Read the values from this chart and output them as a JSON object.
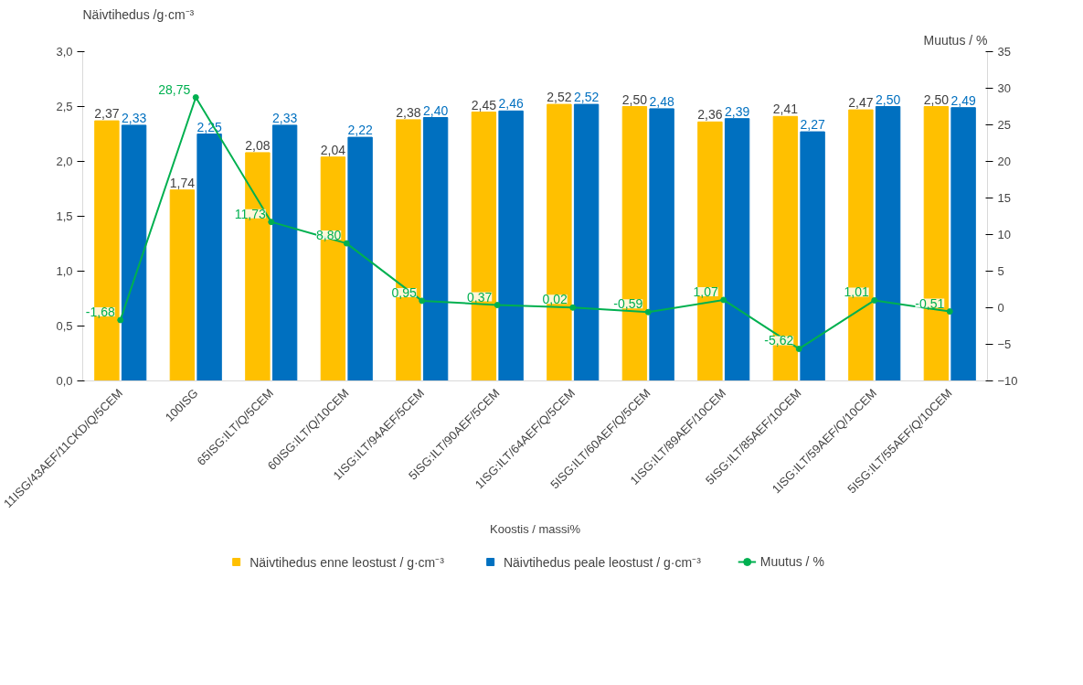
{
  "chart_data": {
    "type": "bar",
    "ylabel": "Näivtihedus /g·cm⁻³",
    "y2label": "Muutus / %",
    "xlabel": "Koostis / massi%",
    "categories": [
      "11ISG/43AEF/11CKD/Q/5CEM",
      "100ISG",
      "65ISG:ILT/Q/5CEM",
      "60ISG:ILT/Q/10CEM",
      "1ISG:ILT/94AEF/5CEM",
      "5ISG:ILT/90AEF/5CEM",
      "1ISG:ILT/64AEF/Q/5CEM",
      "5ISG:ILT/60AEF/Q/5CEM",
      "1ISG:ILT/89AEF/10CEM",
      "5ISG:ILT/85AEF/10CEM",
      "1ISG:ILT/59AEF/Q/10CEM",
      "5ISG:ILT/55AEF/Q/10CEM"
    ],
    "series": [
      {
        "name": "Näivtihedus enne leostust / g·cm⁻³",
        "color": "#ffc000",
        "values": [
          2.37,
          1.74,
          2.08,
          2.04,
          2.38,
          2.45,
          2.52,
          2.5,
          2.36,
          2.41,
          2.47,
          2.5
        ],
        "value_labels": [
          "2,37",
          "1,74",
          "2,08",
          "2,04",
          "2,38",
          "2,45",
          "2,52",
          "2,50",
          "2,36",
          "2,41",
          "2,47",
          "2,50"
        ]
      },
      {
        "name": "Näivtihedus peale leostust / g·cm⁻³",
        "color": "#0070c0",
        "values": [
          2.33,
          2.25,
          2.33,
          2.22,
          2.4,
          2.46,
          2.52,
          2.48,
          2.39,
          2.27,
          2.5,
          2.49
        ],
        "value_labels": [
          "2,33",
          "2,25",
          "2,33",
          "2,22",
          "2,40",
          "2,46",
          "2,52",
          "2,48",
          "2,39",
          "2,27",
          "2,50",
          "2,49"
        ]
      },
      {
        "name": "Muutus / %",
        "type": "line",
        "axis": "y2",
        "color": "#00b050",
        "marker": "circle",
        "values": [
          -1.68,
          28.75,
          11.73,
          8.8,
          0.95,
          0.37,
          0.02,
          -0.59,
          1.07,
          -5.62,
          1.01,
          -0.51
        ],
        "value_labels": [
          "-1,68",
          "28,75",
          "11,73",
          "8,80",
          "0,95",
          "0,37",
          "0,02",
          "-0,59",
          "1,07",
          "-5,62",
          "1,01",
          "-0,51"
        ]
      }
    ],
    "ylim": [
      0,
      3
    ],
    "yticks": [
      {
        "value": 0,
        "label": "0,0"
      },
      {
        "value": 0.5,
        "label": "0,5"
      },
      {
        "value": 1,
        "label": "1,0"
      },
      {
        "value": 1.5,
        "label": "1,5"
      },
      {
        "value": 2,
        "label": "2,0"
      },
      {
        "value": 2.5,
        "label": "2,5"
      },
      {
        "value": 3,
        "label": "3,0"
      }
    ],
    "y2lim": [
      -10,
      35
    ],
    "y2ticks": [
      -10,
      -5,
      0,
      5,
      10,
      15,
      20,
      25,
      30,
      35
    ],
    "grid": false,
    "legend": "bottom"
  }
}
